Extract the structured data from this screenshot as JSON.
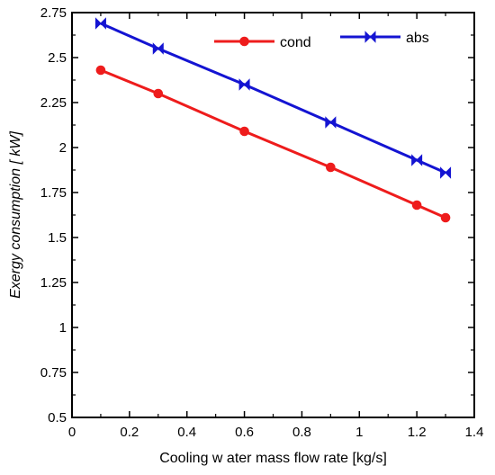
{
  "chart_data": {
    "type": "line",
    "title": "",
    "xlabel": "Cooling w ater mass flow rate [kg/s]",
    "ylabel": "Exergy consumption [ kW]",
    "xlim": [
      0,
      1.4
    ],
    "ylim": [
      0.5,
      2.75
    ],
    "x_ticks": [
      "0",
      "0.2",
      "0.4",
      "0.6",
      "0.8",
      "1",
      "1.2",
      "1.4"
    ],
    "y_ticks": [
      "0.5",
      "0.75",
      "1",
      "1.25",
      "1.5",
      "1.75",
      "2",
      "2.25",
      "2.5",
      "2.75"
    ],
    "grid": false,
    "legend_position": "top-right",
    "series": [
      {
        "name": "cond",
        "color": "#ee1c1c",
        "marker": "circle",
        "x": [
          0.1,
          0.3,
          0.6,
          0.9,
          1.2,
          1.3
        ],
        "values": [
          2.43,
          2.3,
          2.09,
          1.89,
          1.68,
          1.61
        ]
      },
      {
        "name": "abs",
        "color": "#1414d2",
        "marker": "bowtie",
        "x": [
          0.1,
          0.3,
          0.6,
          0.9,
          1.2,
          1.3
        ],
        "values": [
          2.69,
          2.55,
          2.35,
          2.14,
          1.93,
          1.86
        ]
      }
    ]
  }
}
